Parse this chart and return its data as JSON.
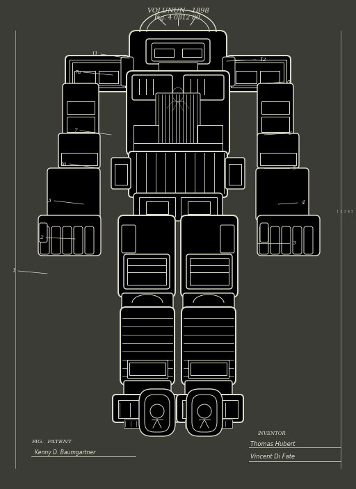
{
  "bg_color": "#3c3c37",
  "line_color": "#e0e0d0",
  "line_color_bright": "#f0f0e8",
  "border_color": "#b0b0a0",
  "title_line1": "VOLUNUN   1898",
  "title_line2": "Fig. 4 0812 80.",
  "fig_label": "FIG.  PATENT",
  "lw_thin": 0.7,
  "lw_med": 1.0,
  "lw_thick": 1.4,
  "fig_width": 5.12,
  "fig_height": 7.04,
  "dpi": 100
}
